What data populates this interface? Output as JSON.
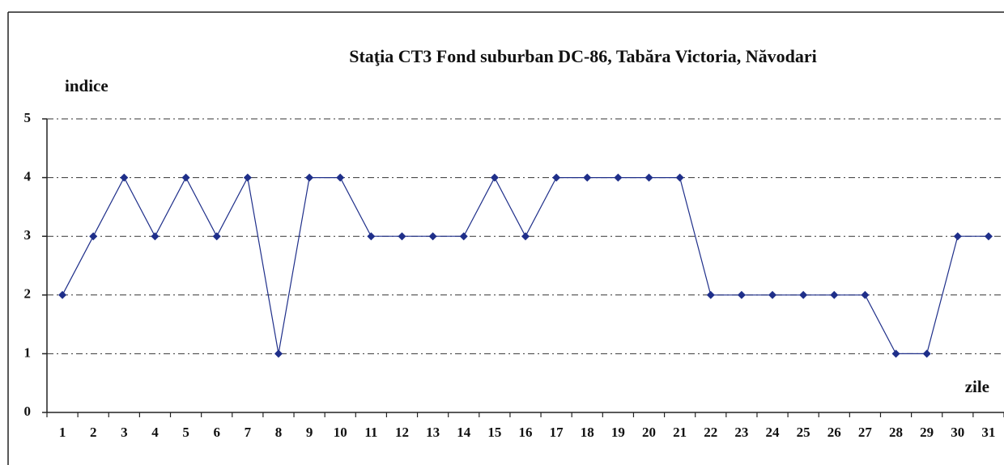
{
  "chart_data": {
    "type": "line",
    "title": "Staţia CT3 Fond suburban  DC-86, Tabăra Victoria, Năvodari",
    "y_label": "indice",
    "x_label": "zile",
    "categories": [
      "1",
      "2",
      "3",
      "4",
      "5",
      "6",
      "7",
      "8",
      "9",
      "10",
      "11",
      "12",
      "13",
      "14",
      "15",
      "16",
      "17",
      "18",
      "19",
      "20",
      "21",
      "22",
      "23",
      "24",
      "25",
      "26",
      "27",
      "28",
      "29",
      "30",
      "31"
    ],
    "series": [
      {
        "color": "#1f2f8a",
        "values": [
          2,
          3,
          4,
          3,
          4,
          3,
          4,
          1,
          4,
          4,
          3,
          3,
          3,
          3,
          4,
          3,
          4,
          4,
          4,
          4,
          4,
          2,
          2,
          2,
          2,
          2,
          2,
          1,
          1,
          3,
          3
        ]
      }
    ],
    "ylim": [
      0,
      5
    ],
    "yticks": [
      0,
      1,
      2,
      3,
      4,
      5
    ],
    "grid": true
  }
}
